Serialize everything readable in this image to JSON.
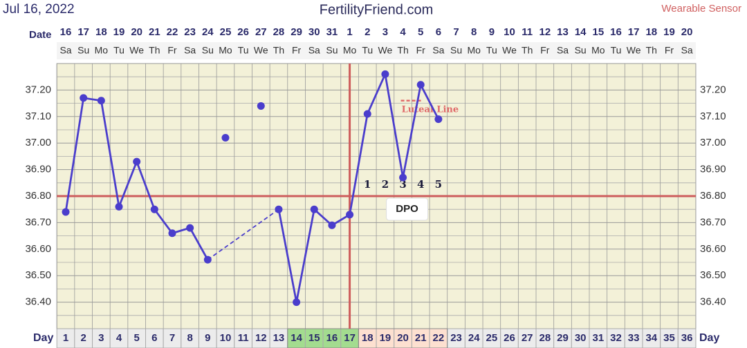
{
  "chart_data": {
    "type": "line",
    "title": "FertilityFriend.com",
    "subtitle": "Jul 16, 2022",
    "source_label": "Wearable Sensor",
    "date_label": "Date",
    "day_label": "Day",
    "days": [
      1,
      2,
      3,
      4,
      5,
      6,
      7,
      8,
      9,
      10,
      11,
      12,
      13,
      14,
      15,
      16,
      17,
      18,
      19,
      20,
      21,
      22,
      23,
      24,
      25,
      26,
      27,
      28,
      29,
      30,
      31,
      32,
      33,
      34,
      35,
      36
    ],
    "dates": [
      16,
      17,
      18,
      19,
      20,
      21,
      22,
      23,
      24,
      25,
      26,
      27,
      28,
      29,
      30,
      31,
      1,
      2,
      3,
      4,
      5,
      6,
      7,
      8,
      9,
      10,
      11,
      12,
      13,
      14,
      15,
      16,
      17,
      18,
      19,
      20
    ],
    "weekdays": [
      "Sa",
      "Su",
      "Mo",
      "Tu",
      "We",
      "Th",
      "Fr",
      "Sa",
      "Su",
      "Mo",
      "Tu",
      "We",
      "Th",
      "Fr",
      "Sa",
      "Su",
      "Mo",
      "Tu",
      "We",
      "Th",
      "Fr",
      "Sa",
      "Su",
      "Mo",
      "Tu",
      "We",
      "Th",
      "Fr",
      "Sa",
      "Su",
      "Mo",
      "Tu",
      "We",
      "Th",
      "Fr",
      "Sa"
    ],
    "values": [
      36.74,
      37.17,
      37.16,
      36.76,
      36.93,
      36.75,
      36.66,
      36.68,
      36.56,
      37.02,
      null,
      37.14,
      36.75,
      36.4,
      36.75,
      36.69,
      36.73,
      37.11,
      37.26,
      36.87,
      37.22,
      37.09,
      null,
      null,
      null,
      null,
      null,
      null,
      null,
      null,
      null,
      null,
      null,
      null,
      null,
      null
    ],
    "discarded_days": [
      10,
      12
    ],
    "color": "#4a3dcc",
    "ylim": [
      36.3,
      37.3
    ],
    "yticks": [
      {
        "value": 36.4,
        "label": "36.40"
      },
      {
        "value": 36.5,
        "label": "36.50"
      },
      {
        "value": 36.6,
        "label": "36.60"
      },
      {
        "value": 36.7,
        "label": "36.70"
      },
      {
        "value": 36.8,
        "label": "36.80"
      },
      {
        "value": 36.9,
        "label": "36.90"
      },
      {
        "value": 37.0,
        "label": "37.00"
      },
      {
        "value": 37.1,
        "label": "37.10"
      },
      {
        "value": 37.2,
        "label": "37.20"
      }
    ],
    "grid": true,
    "coverline": 36.8,
    "ovulation_day": 17,
    "dpo": [
      null,
      null,
      null,
      null,
      null,
      null,
      null,
      null,
      null,
      null,
      null,
      null,
      null,
      null,
      null,
      null,
      null,
      1,
      2,
      3,
      4,
      5,
      null,
      null,
      null,
      null,
      null,
      null,
      null,
      null,
      null,
      null,
      null,
      null,
      null,
      null
    ],
    "dpo_title": "DPO",
    "luteal_line": {
      "label": "Luteal Line",
      "value": 37.16,
      "start_day": 20,
      "end_day": 21
    },
    "highlights": [
      {
        "from": 14,
        "to": 17,
        "color": "#a3dc8f"
      },
      {
        "from": 18,
        "to": 22,
        "color": "#fde0d0"
      }
    ]
  }
}
